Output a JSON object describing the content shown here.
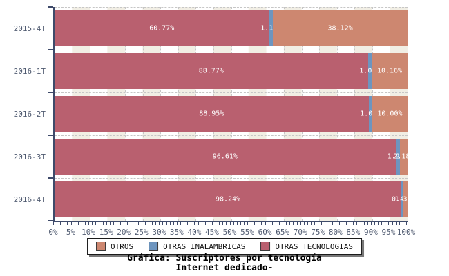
{
  "chart_data": {
    "type": "bar",
    "orientation": "horizontal",
    "stacked": true,
    "title": "Gráfica: Suscriptores por tecnología",
    "subtitle": "Internet dedicado-",
    "categories": [
      "2015-4T",
      "2016-1T",
      "2016-2T",
      "2016-3T",
      "2016-4T"
    ],
    "series": [
      {
        "name": "OTRAS TECNOLOGIAS",
        "color": "#b9606f",
        "values": [
          60.77,
          88.77,
          88.95,
          96.61,
          98.24
        ],
        "labels": [
          "60.77%",
          "88.77%",
          "88.95%",
          "96.61%",
          "98.24%"
        ]
      },
      {
        "name": "OTRAS INALAMBRICAS",
        "color": "#6d95bf",
        "values": [
          1.1,
          1.07,
          1.05,
          1.21,
          0.41
        ],
        "labels": [
          "1.10%",
          "1.07%",
          "1.05%",
          "1.21%",
          "0.41%"
        ]
      },
      {
        "name": "OTROS",
        "color": "#cd8770",
        "values": [
          38.12,
          10.16,
          10.0,
          2.18,
          1.35
        ],
        "labels": [
          "38.12%",
          "10.16%",
          "10.00%",
          "2.18%",
          "1.35%"
        ]
      }
    ],
    "xlim": [
      0,
      100
    ],
    "x_ticks": [
      "0%",
      "5%",
      "10%",
      "15%",
      "20%",
      "25%",
      "30%",
      "35%",
      "40%",
      "45%",
      "50%",
      "55%",
      "60%",
      "65%",
      "70%",
      "75%",
      "80%",
      "85%",
      "90%",
      "95%",
      "100%"
    ],
    "grid": "dashed",
    "legend": {
      "position": "bottom",
      "items": [
        {
          "label": "OTROS",
          "color": "#cd8770"
        },
        {
          "label": "OTRAS INALAMBRICAS",
          "color": "#6d95bf"
        },
        {
          "label": "OTRAS TECNOLOGIAS",
          "color": "#b9606f"
        }
      ]
    },
    "colors": {
      "axis": "#3e4a6a",
      "tick_text": "#4f5a70",
      "stripe": "#f1eee4",
      "bar_label_text": "#ffffff"
    }
  }
}
